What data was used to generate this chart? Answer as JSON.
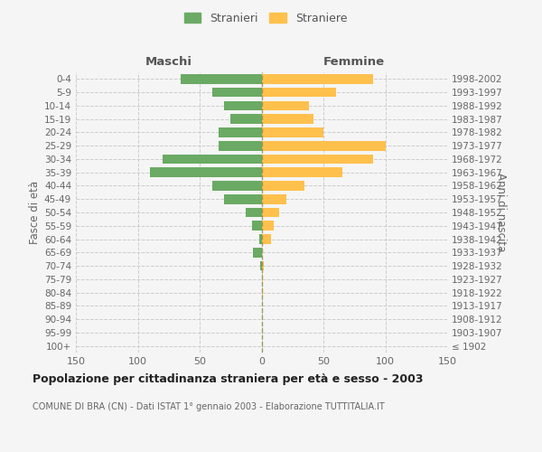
{
  "age_groups": [
    "100+",
    "95-99",
    "90-94",
    "85-89",
    "80-84",
    "75-79",
    "70-74",
    "65-69",
    "60-64",
    "55-59",
    "50-54",
    "45-49",
    "40-44",
    "35-39",
    "30-34",
    "25-29",
    "20-24",
    "15-19",
    "10-14",
    "5-9",
    "0-4"
  ],
  "birth_years": [
    "≤ 1902",
    "1903-1907",
    "1908-1912",
    "1913-1917",
    "1918-1922",
    "1923-1927",
    "1928-1932",
    "1933-1937",
    "1938-1942",
    "1943-1947",
    "1948-1952",
    "1953-1957",
    "1958-1962",
    "1963-1967",
    "1968-1972",
    "1973-1977",
    "1978-1982",
    "1983-1987",
    "1988-1992",
    "1993-1997",
    "1998-2002"
  ],
  "maschi": [
    0,
    0,
    0,
    0,
    0,
    0,
    1,
    7,
    2,
    8,
    13,
    30,
    40,
    90,
    80,
    35,
    35,
    25,
    30,
    40,
    65
  ],
  "femmine": [
    0,
    0,
    0,
    0,
    1,
    1,
    2,
    0,
    8,
    10,
    14,
    20,
    35,
    65,
    90,
    100,
    50,
    42,
    38,
    60,
    90
  ],
  "male_color": "#6aaa64",
  "female_color": "#ffc04c",
  "center_line_color": "#909050",
  "grid_color": "#cccccc",
  "bg_color": "#f5f5f5",
  "xlim": 150,
  "title": "Popolazione per cittadinanza straniera per età e sesso - 2003",
  "subtitle": "COMUNE DI BRA (CN) - Dati ISTAT 1° gennaio 2003 - Elaborazione TUTTITALIA.IT",
  "ylabel_left": "Fasce di età",
  "ylabel_right": "Anni di nascita",
  "header_left": "Maschi",
  "header_right": "Femmine",
  "legend_stranieri": "Stranieri",
  "legend_straniere": "Straniere"
}
